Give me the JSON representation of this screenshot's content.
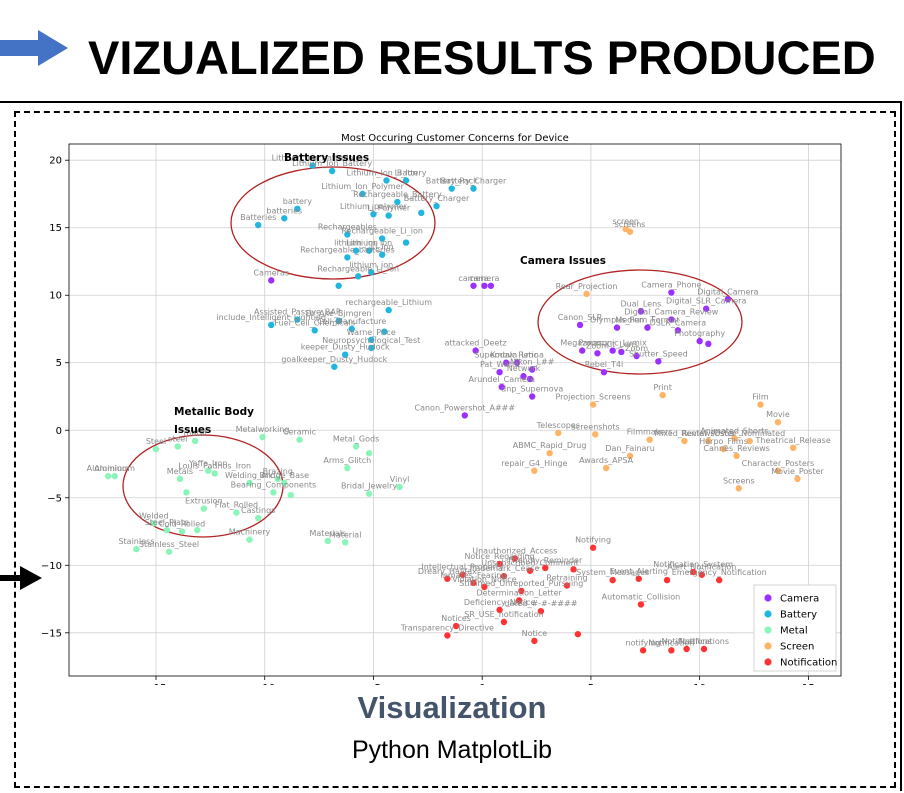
{
  "headline": "VIZUALIZED RESULTS PRODUCED",
  "caption": {
    "title": "Visualization",
    "subtitle": "Python MatplotLib"
  },
  "chart_data": {
    "type": "scatter",
    "title": "Most Occuring Customer Concerns for Device",
    "xlabel": "",
    "ylabel": "",
    "xlim": [
      -19,
      16.5
    ],
    "ylim": [
      -18.2,
      21.2
    ],
    "xticks": [
      -15,
      -10,
      -5,
      0,
      5,
      10,
      15
    ],
    "yticks": [
      -15,
      -10,
      -5,
      0,
      5,
      10,
      15,
      20
    ],
    "grid": true,
    "legend_position": "lower-right",
    "colors": {
      "Camera": "#9b30ff",
      "Battery": "#1fb7e0",
      "Metal": "#8af5b8",
      "Screen": "#ffb366",
      "Notification": "#ff3333"
    },
    "series": [
      {
        "name": "Camera",
        "points": [
          {
            "x": -9.7,
            "y": 11.1,
            "label": "Cameras"
          },
          {
            "x": -0.4,
            "y": 10.7,
            "label": "camera"
          },
          {
            "x": 0.1,
            "y": 10.7,
            "label": "camera"
          },
          {
            "x": 0.4,
            "y": 10.7,
            "label": ""
          },
          {
            "x": 8.7,
            "y": 10.2,
            "label": "Camera_Phone"
          },
          {
            "x": 11.3,
            "y": 9.7,
            "label": "Digital_Camera"
          },
          {
            "x": 7.3,
            "y": 8.8,
            "label": "Dual_Lens"
          },
          {
            "x": 10.3,
            "y": 9.0,
            "label": "Digital_SLR_Camera"
          },
          {
            "x": 8.7,
            "y": 8.2,
            "label": "Digital_Camera_Review"
          },
          {
            "x": 4.5,
            "y": 7.8,
            "label": "Canon_SLR"
          },
          {
            "x": 6.2,
            "y": 7.6,
            "label": "Olympus_Pen"
          },
          {
            "x": 7.6,
            "y": 7.6,
            "label": "Medium_Format"
          },
          {
            "x": 9.0,
            "y": 7.4,
            "label": "DSLR_Camera"
          },
          {
            "x": 10.0,
            "y": 6.6,
            "label": "Photography"
          },
          {
            "x": 10.4,
            "y": 6.4,
            "label": ""
          },
          {
            "x": 4.6,
            "y": 5.9,
            "label": "Megazoom"
          },
          {
            "x": 5.3,
            "y": 5.7,
            "label": "Zoom"
          },
          {
            "x": 6.4,
            "y": 5.8,
            "label": "Kit_Lens"
          },
          {
            "x": 6.0,
            "y": 5.9,
            "label": "Panasonic_Lumix"
          },
          {
            "x": 7.1,
            "y": 5.5,
            "label": "Zoom"
          },
          {
            "x": 8.1,
            "y": 5.1,
            "label": "Shutter_Speed"
          },
          {
            "x": 5.6,
            "y": 4.3,
            "label": "Rebel_T4i"
          },
          {
            "x": 1.6,
            "y": 5.0,
            "label": "Kodak_Retina"
          },
          {
            "x": 2.3,
            "y": 4.5,
            "label": "Nikon_L##"
          },
          {
            "x": -0.3,
            "y": 5.9,
            "label": "attacked_Deetz"
          },
          {
            "x": 1.1,
            "y": 5.0,
            "label": "Supernova_Lmc"
          },
          {
            "x": 0.8,
            "y": 4.3,
            "label": "Pat_Watts"
          },
          {
            "x": 1.9,
            "y": 4.0,
            "label": "Network"
          },
          {
            "x": 2.2,
            "y": 3.8,
            "label": ""
          },
          {
            "x": 0.9,
            "y": 3.2,
            "label": "Arundel_Camera"
          },
          {
            "x": 2.3,
            "y": 2.5,
            "label": "dnp_Supernova"
          },
          {
            "x": -0.8,
            "y": 1.1,
            "label": "Canon_Powershot_A###"
          }
        ]
      },
      {
        "name": "Battery",
        "points": [
          {
            "x": -7.8,
            "y": 19.6,
            "label": "Lithium_Ion_batterie"
          },
          {
            "x": -6.9,
            "y": 19.2,
            "label": "Lithium_Ion_Battery"
          },
          {
            "x": -4.4,
            "y": 18.5,
            "label": "Lithium_Ion_Battery"
          },
          {
            "x": -3.5,
            "y": 18.5,
            "label": "Li_Ion"
          },
          {
            "x": -1.4,
            "y": 17.9,
            "label": "Battery_Pack"
          },
          {
            "x": -0.4,
            "y": 17.9,
            "label": "Battery_Charger"
          },
          {
            "x": -5.5,
            "y": 17.5,
            "label": "Lithium_Ion_Polymer"
          },
          {
            "x": -2.1,
            "y": 16.6,
            "label": "Battery_Charger"
          },
          {
            "x": -8.5,
            "y": 16.4,
            "label": "battery"
          },
          {
            "x": -3.9,
            "y": 16.9,
            "label": "Rechargeable_Battery"
          },
          {
            "x": -2.8,
            "y": 16.1,
            "label": ""
          },
          {
            "x": -5.0,
            "y": 16.0,
            "label": "Lithium_polymer"
          },
          {
            "x": -4.3,
            "y": 15.9,
            "label": "Li_Polymer"
          },
          {
            "x": -9.1,
            "y": 15.7,
            "label": "batteries"
          },
          {
            "x": -10.3,
            "y": 15.2,
            "label": "Batteries"
          },
          {
            "x": -6.2,
            "y": 14.5,
            "label": "Rechargeables"
          },
          {
            "x": -4.6,
            "y": 14.2,
            "label": "Rechargeable_Li_ion"
          },
          {
            "x": -3.5,
            "y": 13.9,
            "label": ""
          },
          {
            "x": -5.8,
            "y": 13.3,
            "label": "lithium_ion"
          },
          {
            "x": -5.2,
            "y": 13.3,
            "label": "Lithium_ion"
          },
          {
            "x": -4.6,
            "y": 13.0,
            "label": "Li_Ion"
          },
          {
            "x": -6.2,
            "y": 12.8,
            "label": "Rechargeable_batteries"
          },
          {
            "x": -5.1,
            "y": 11.7,
            "label": "lithium_ion"
          },
          {
            "x": -5.7,
            "y": 11.4,
            "label": "Rechargeable_Li_ion"
          },
          {
            "x": -6.6,
            "y": 10.7,
            "label": ""
          },
          {
            "x": -4.3,
            "y": 8.9,
            "label": "rechargeable_Lithium"
          },
          {
            "x": -8.5,
            "y": 8.2,
            "label": "Assisted_Passive_BAP"
          },
          {
            "x": -6.6,
            "y": 8.1,
            "label": "Dr_Ake_Bjmgren"
          },
          {
            "x": -9.7,
            "y": 7.8,
            "label": "include_Intelligent_Lighting"
          },
          {
            "x": -7.7,
            "y": 7.4,
            "label": "Fuel_Cell_Chemicals"
          },
          {
            "x": -6.0,
            "y": 7.5,
            "label": "Cell_Manufacture"
          },
          {
            "x": -5.1,
            "y": 6.7,
            "label": "Warne_Price"
          },
          {
            "x": -5.1,
            "y": 6.1,
            "label": "Neuropsychological_Test"
          },
          {
            "x": -6.3,
            "y": 5.6,
            "label": "keeper_Dusty_Hudock"
          },
          {
            "x": -6.8,
            "y": 4.7,
            "label": "goalkeeper_Dusty_Hudock"
          },
          {
            "x": -4.5,
            "y": 7.3,
            "label": ""
          }
        ]
      },
      {
        "name": "Metal",
        "points": [
          {
            "x": -15.0,
            "y": -1.4,
            "label": "Steel"
          },
          {
            "x": -14.0,
            "y": -1.2,
            "label": "steel"
          },
          {
            "x": -13.2,
            "y": -0.8,
            "label": "metal"
          },
          {
            "x": -10.1,
            "y": -0.5,
            "label": "Metalworking"
          },
          {
            "x": -8.4,
            "y": -0.7,
            "label": "Ceramic"
          },
          {
            "x": -17.2,
            "y": -3.4,
            "label": "Aluminium"
          },
          {
            "x": -16.9,
            "y": -3.4,
            "label": "Aluminum"
          },
          {
            "x": -13.9,
            "y": -3.6,
            "label": "Metals"
          },
          {
            "x": -12.6,
            "y": -3.0,
            "label": "Yaffe_Iron"
          },
          {
            "x": -12.3,
            "y": -3.2,
            "label": "Louis_Padnos_Iron"
          },
          {
            "x": -10.7,
            "y": -3.9,
            "label": "Welding_Arc"
          },
          {
            "x": -9.4,
            "y": -3.6,
            "label": "Brazing"
          },
          {
            "x": -9.1,
            "y": -3.9,
            "label": "Bridge_Base"
          },
          {
            "x": -9.6,
            "y": -4.6,
            "label": "Bearing_Components"
          },
          {
            "x": -8.8,
            "y": -4.8,
            "label": ""
          },
          {
            "x": -6.2,
            "y": -2.8,
            "label": "Arms_Glitch"
          },
          {
            "x": -5.8,
            "y": -1.2,
            "label": "Metal_Gods"
          },
          {
            "x": -5.2,
            "y": -1.7,
            "label": ""
          },
          {
            "x": -5.2,
            "y": -4.7,
            "label": "Bridal_Jewelry"
          },
          {
            "x": -3.8,
            "y": -4.2,
            "label": "Vinyl"
          },
          {
            "x": -13.6,
            "y": -4.6,
            "label": ""
          },
          {
            "x": -12.8,
            "y": -5.8,
            "label": "Extrusion"
          },
          {
            "x": -11.3,
            "y": -6.1,
            "label": "Flat_Rolled"
          },
          {
            "x": -10.3,
            "y": -6.5,
            "label": "Castings"
          },
          {
            "x": -15.1,
            "y": -6.9,
            "label": "Welded"
          },
          {
            "x": -14.5,
            "y": -7.4,
            "label": "Steel_Plate"
          },
          {
            "x": -13.8,
            "y": -7.5,
            "label": "Cold_Rolled"
          },
          {
            "x": -13.1,
            "y": -7.4,
            "label": ""
          },
          {
            "x": -10.7,
            "y": -8.1,
            "label": "Machinery"
          },
          {
            "x": -7.1,
            "y": -8.2,
            "label": "Materials"
          },
          {
            "x": -6.3,
            "y": -8.3,
            "label": "Material"
          },
          {
            "x": -15.9,
            "y": -8.8,
            "label": "Stainless"
          },
          {
            "x": -14.4,
            "y": -9.0,
            "label": "Stainless_Steel"
          }
        ]
      },
      {
        "name": "Screen",
        "points": [
          {
            "x": 6.6,
            "y": 14.9,
            "label": "screen"
          },
          {
            "x": 6.8,
            "y": 14.7,
            "label": "screens"
          },
          {
            "x": 4.8,
            "y": 10.1,
            "label": "Rear_Projection"
          },
          {
            "x": 8.3,
            "y": 2.6,
            "label": "Print"
          },
          {
            "x": 12.8,
            "y": 1.9,
            "label": "Film"
          },
          {
            "x": 13.6,
            "y": 0.6,
            "label": "Movie"
          },
          {
            "x": 11.6,
            "y": -0.6,
            "label": "Animated_Shorts"
          },
          {
            "x": 12.3,
            "y": -0.8,
            "label": "Oscar_Nominated"
          },
          {
            "x": 14.3,
            "y": -1.3,
            "label": "Theatrical_Release"
          },
          {
            "x": 5.1,
            "y": 1.9,
            "label": "Projection_Screens"
          },
          {
            "x": 3.5,
            "y": -0.2,
            "label": "Telescopes"
          },
          {
            "x": 5.2,
            "y": -0.3,
            "label": "Screenshots"
          },
          {
            "x": 7.7,
            "y": -0.7,
            "label": "Filmmakers"
          },
          {
            "x": 9.3,
            "y": -0.8,
            "label": "Mixed_Reviews"
          },
          {
            "x": 10.4,
            "y": -0.8,
            "label": "Rental_Poster"
          },
          {
            "x": 11.1,
            "y": -1.4,
            "label": "Harpo_Films"
          },
          {
            "x": 11.7,
            "y": -1.9,
            "label": "Cannes_Reviews"
          },
          {
            "x": 6.8,
            "y": -1.9,
            "label": "Dan_Fainaru"
          },
          {
            "x": 5.7,
            "y": -2.8,
            "label": "Awards_APSA"
          },
          {
            "x": 2.4,
            "y": -3.0,
            "label": "repair_G4_Hinge"
          },
          {
            "x": 3.1,
            "y": -1.7,
            "label": "ABMC_Rapid_Drug"
          },
          {
            "x": 14.5,
            "y": -3.6,
            "label": "Movie_Poster"
          },
          {
            "x": 11.8,
            "y": -4.3,
            "label": "Screens"
          },
          {
            "x": 13.6,
            "y": -3.0,
            "label": "Character_Posters"
          }
        ]
      },
      {
        "name": "Notification",
        "points": [
          {
            "x": 5.1,
            "y": -8.7,
            "label": "Notifying"
          },
          {
            "x": 1.5,
            "y": -9.5,
            "label": "Unauthorized_Access"
          },
          {
            "x": 2.9,
            "y": -10.2,
            "label": "Friendly_Reminder"
          },
          {
            "x": 0.8,
            "y": -9.9,
            "label": "Notice_Regarding"
          },
          {
            "x": 2.2,
            "y": -10.4,
            "label": "Unsubscribed_Comment"
          },
          {
            "x": 4.2,
            "y": -10.3,
            "label": ""
          },
          {
            "x": 9.7,
            "y": -10.5,
            "label": "Notification_System"
          },
          {
            "x": 10.1,
            "y": -10.7,
            "label": "Alert_Notification"
          },
          {
            "x": 10.9,
            "y": -11.1,
            "label": "Emergency_Notification"
          },
          {
            "x": -0.9,
            "y": -10.7,
            "label": "Intellectual_Property"
          },
          {
            "x": 1.0,
            "y": -10.8,
            "label": "Trademark_Cease"
          },
          {
            "x": -1.6,
            "y": -11.0,
            "label": "Dreary_Halifax"
          },
          {
            "x": -0.4,
            "y": -11.3,
            "label": "Inmates_Fearing"
          },
          {
            "x": 0.1,
            "y": -11.6,
            "label": "Violation_Notice"
          },
          {
            "x": 3.9,
            "y": -11.5,
            "label": "Retraining"
          },
          {
            "x": 6.0,
            "y": -11.1,
            "label": "System_Messages"
          },
          {
            "x": 7.2,
            "y": -11.0,
            "label": "Event_Alerting"
          },
          {
            "x": 8.5,
            "y": -11.1,
            "label": ""
          },
          {
            "x": 1.8,
            "y": -11.9,
            "label": "Stimmed_Unreported_Pursuing"
          },
          {
            "x": 1.7,
            "y": -12.6,
            "label": "Determination_Letter"
          },
          {
            "x": 7.3,
            "y": -12.9,
            "label": "Automatic_Collision"
          },
          {
            "x": 0.8,
            "y": -13.3,
            "label": "Deficiency_Notice"
          },
          {
            "x": 2.7,
            "y": -13.4,
            "label": "dated_#-#-####"
          },
          {
            "x": 1.0,
            "y": -14.2,
            "label": "SR_USE_notification"
          },
          {
            "x": -1.2,
            "y": -14.5,
            "label": "Notices"
          },
          {
            "x": -1.6,
            "y": -15.2,
            "label": "Transparency_Directive"
          },
          {
            "x": 2.4,
            "y": -15.6,
            "label": "Notice"
          },
          {
            "x": 4.4,
            "y": -15.1,
            "label": ""
          },
          {
            "x": 7.4,
            "y": -16.3,
            "label": "notifying"
          },
          {
            "x": 8.7,
            "y": -16.3,
            "label": "Notification"
          },
          {
            "x": 9.4,
            "y": -16.2,
            "label": "Notifications"
          },
          {
            "x": 10.2,
            "y": -16.2,
            "label": "Notifications"
          }
        ]
      }
    ],
    "annotations": [
      {
        "text": "Battery Issues"
      },
      {
        "text": "Camera Issues"
      },
      {
        "text": "Metallic Body"
      },
      {
        "text": "Issues"
      }
    ]
  }
}
